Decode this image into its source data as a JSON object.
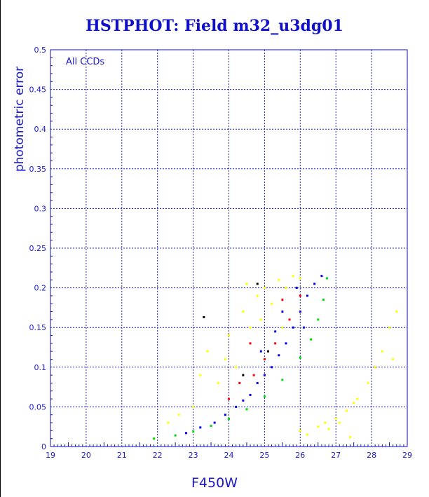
{
  "title": "HSTPHOT: Field m32_u3dg01",
  "chart_data": {
    "type": "scatter",
    "title": "HSTPHOT: Field m32_u3dg01",
    "xlabel": "F450W",
    "ylabel": "photometric error",
    "annotation": "All CCDs",
    "xlim": [
      19,
      29
    ],
    "ylim": [
      0,
      0.5
    ],
    "x_ticks": [
      "19",
      "20",
      "21",
      "22",
      "23",
      "24",
      "25",
      "26",
      "27",
      "28",
      "29"
    ],
    "y_ticks": [
      "0",
      "0.05",
      "0.1",
      "0.15",
      "0.2",
      "0.25",
      "0.3",
      "0.35",
      "0.4",
      "0.45",
      "0.5"
    ],
    "grid": true,
    "series": [
      {
        "color": "#00dd00",
        "points": [
          [
            21.9,
            0.01
          ],
          [
            22.5,
            0.014
          ],
          [
            23.0,
            0.019
          ],
          [
            23.5,
            0.026
          ],
          [
            24.0,
            0.035
          ],
          [
            24.5,
            0.047
          ],
          [
            25.0,
            0.063
          ],
          [
            25.5,
            0.084
          ],
          [
            26.0,
            0.112
          ],
          [
            26.3,
            0.135
          ],
          [
            26.5,
            0.16
          ],
          [
            26.65,
            0.185
          ],
          [
            26.75,
            0.212
          ]
        ]
      },
      {
        "color": "#0000ee",
        "points": [
          [
            22.8,
            0.017
          ],
          [
            23.2,
            0.024
          ],
          [
            23.6,
            0.03
          ],
          [
            23.9,
            0.04
          ],
          [
            24.2,
            0.05
          ],
          [
            24.4,
            0.058
          ],
          [
            24.6,
            0.065
          ],
          [
            24.8,
            0.08
          ],
          [
            25.0,
            0.09
          ],
          [
            25.2,
            0.1
          ],
          [
            25.4,
            0.115
          ],
          [
            25.6,
            0.13
          ],
          [
            25.8,
            0.15
          ],
          [
            26.0,
            0.17
          ],
          [
            26.2,
            0.19
          ],
          [
            26.4,
            0.205
          ],
          [
            26.6,
            0.215
          ],
          [
            25.5,
            0.17
          ],
          [
            25.9,
            0.2
          ],
          [
            26.1,
            0.15
          ],
          [
            24.9,
            0.12
          ],
          [
            25.3,
            0.145
          ]
        ]
      },
      {
        "color": "#ffff00",
        "points": [
          [
            22.3,
            0.03
          ],
          [
            22.6,
            0.04
          ],
          [
            23.0,
            0.05
          ],
          [
            23.2,
            0.09
          ],
          [
            23.4,
            0.12
          ],
          [
            23.7,
            0.08
          ],
          [
            24.0,
            0.14
          ],
          [
            24.2,
            0.1
          ],
          [
            24.4,
            0.17
          ],
          [
            24.6,
            0.15
          ],
          [
            24.8,
            0.19
          ],
          [
            25.0,
            0.2
          ],
          [
            25.2,
            0.18
          ],
          [
            25.4,
            0.21
          ],
          [
            25.6,
            0.2
          ],
          [
            25.8,
            0.215
          ],
          [
            26.0,
            0.212
          ],
          [
            24.5,
            0.205
          ],
          [
            23.9,
            0.11
          ],
          [
            24.9,
            0.16
          ],
          [
            25.5,
            0.15
          ],
          [
            26.7,
            0.03
          ],
          [
            27.0,
            0.035
          ],
          [
            27.3,
            0.045
          ],
          [
            27.6,
            0.06
          ],
          [
            27.9,
            0.08
          ],
          [
            28.1,
            0.1
          ],
          [
            28.3,
            0.12
          ],
          [
            28.5,
            0.15
          ],
          [
            28.7,
            0.17
          ],
          [
            26.0,
            0.02
          ],
          [
            26.5,
            0.025
          ],
          [
            27.5,
            0.055
          ],
          [
            26.2,
            0.015
          ],
          [
            26.8,
            0.022
          ],
          [
            27.1,
            0.03
          ],
          [
            27.4,
            0.012
          ],
          [
            28.6,
            0.11
          ]
        ]
      },
      {
        "color": "#ff0000",
        "points": [
          [
            24.0,
            0.06
          ],
          [
            24.3,
            0.08
          ],
          [
            24.7,
            0.09
          ],
          [
            25.0,
            0.11
          ],
          [
            25.3,
            0.13
          ],
          [
            25.7,
            0.16
          ],
          [
            26.0,
            0.19
          ],
          [
            24.6,
            0.13
          ],
          [
            25.5,
            0.185
          ]
        ]
      },
      {
        "color": "#000000",
        "points": [
          [
            23.3,
            0.163
          ],
          [
            24.8,
            0.205
          ],
          [
            25.1,
            0.12
          ],
          [
            24.4,
            0.09
          ]
        ]
      }
    ]
  }
}
